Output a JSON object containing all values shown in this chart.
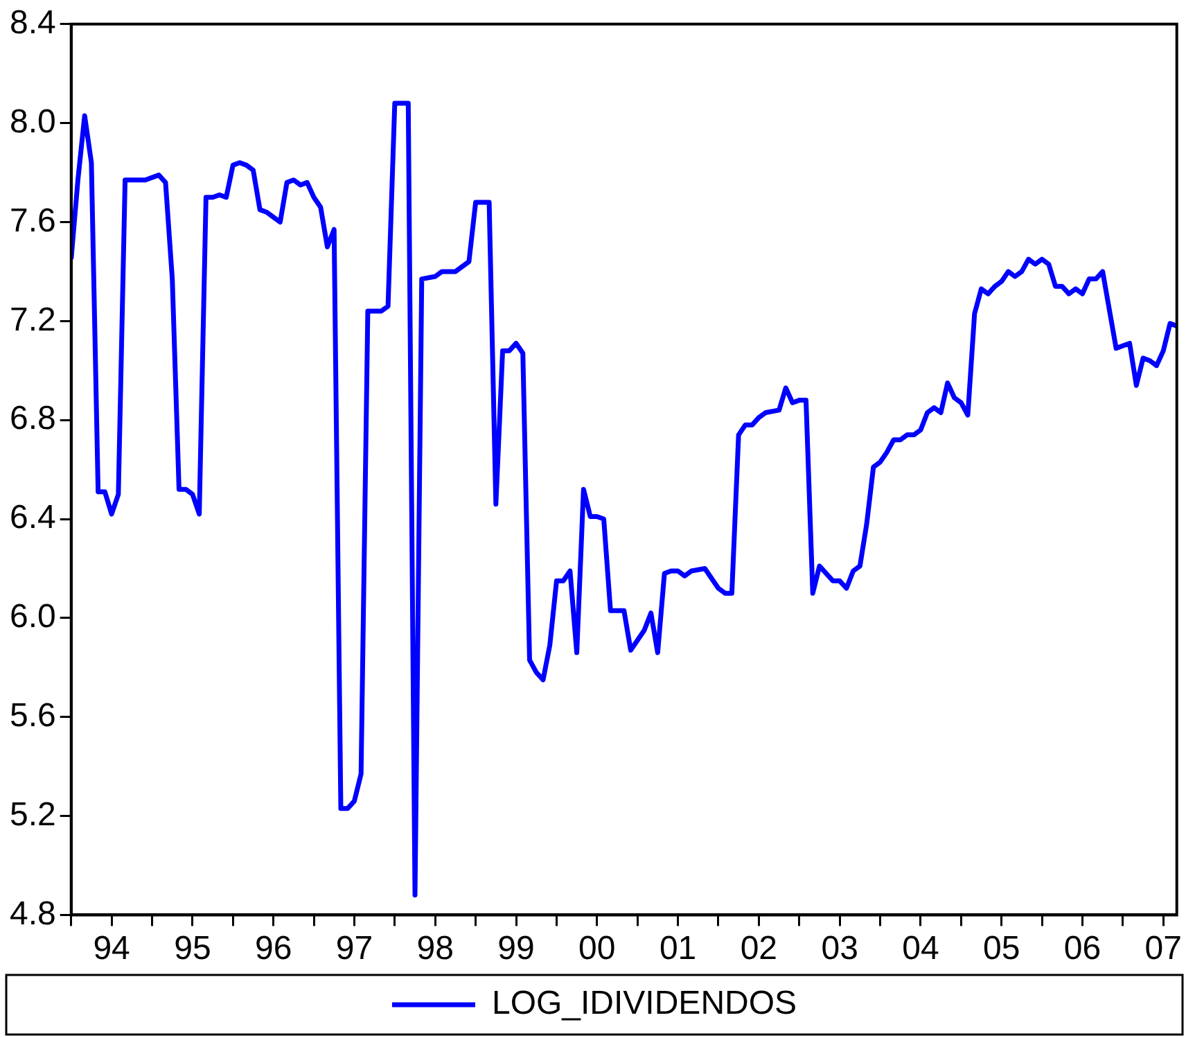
{
  "chart_data": {
    "type": "line",
    "x": [
      "1994-01",
      "1994-02",
      "1994-03",
      "1994-04",
      "1994-05",
      "1994-06",
      "1994-07",
      "1994-08",
      "1994-09",
      "1994-11",
      "1994-12",
      "1995-02",
      "1995-03",
      "1995-04",
      "1995-05",
      "1995-06",
      "1995-07",
      "1995-08",
      "1995-09",
      "1995-10",
      "1995-11",
      "1995-12",
      "1996-01",
      "1996-02",
      "1996-03",
      "1996-04",
      "1996-05",
      "1996-06",
      "1996-07",
      "1996-08",
      "1996-09",
      "1996-10",
      "1996-11",
      "1996-12",
      "1997-01",
      "1997-02",
      "1997-03",
      "1997-04",
      "1997-05",
      "1997-06",
      "1997-07",
      "1997-08",
      "1997-09",
      "1997-11",
      "1997-12",
      "1998-01",
      "1998-03",
      "1998-04",
      "1998-05",
      "1998-07",
      "1998-08",
      "1998-10",
      "1998-12",
      "1999-01",
      "1999-02",
      "1999-03",
      "1999-04",
      "1999-05",
      "1999-06",
      "1999-07",
      "1999-08",
      "1999-09",
      "1999-10",
      "1999-11",
      "1999-12",
      "2000-01",
      "2000-02",
      "2000-03",
      "2000-04",
      "2000-05",
      "2000-06",
      "2000-07",
      "2000-08",
      "2000-09",
      "2000-11",
      "2000-12",
      "2001-01",
      "2001-02",
      "2001-03",
      "2001-04",
      "2001-05",
      "2001-06",
      "2001-07",
      "2001-08",
      "2001-09",
      "2001-11",
      "2001-12",
      "2002-01",
      "2002-02",
      "2002-03",
      "2002-04",
      "2002-05",
      "2002-06",
      "2002-07",
      "2002-08",
      "2002-10",
      "2002-11",
      "2002-12",
      "2003-01",
      "2003-02",
      "2003-03",
      "2003-04",
      "2003-05",
      "2003-06",
      "2003-07",
      "2003-08",
      "2003-09",
      "2003-10",
      "2003-11",
      "2003-12",
      "2004-01",
      "2004-02",
      "2004-03",
      "2004-04",
      "2004-05",
      "2004-06",
      "2004-07",
      "2004-08",
      "2004-09",
      "2004-10",
      "2004-11",
      "2004-12",
      "2005-01",
      "2005-02",
      "2005-03",
      "2005-04",
      "2005-05",
      "2005-06",
      "2005-07",
      "2005-08",
      "2005-09",
      "2005-10",
      "2005-11",
      "2005-12",
      "2006-01",
      "2006-02",
      "2006-03",
      "2006-04",
      "2006-05",
      "2006-06",
      "2006-07",
      "2006-08",
      "2006-09",
      "2006-10",
      "2006-12",
      "2007-01",
      "2007-02",
      "2007-03",
      "2007-04",
      "2007-05",
      "2007-06",
      "2007-07",
      "2007-08",
      "2007-09"
    ],
    "series": [
      {
        "name": "LOG_IDIVIDENDOS",
        "color": "#0000ff",
        "values": [
          7.45,
          7.77,
          8.03,
          7.84,
          6.51,
          6.51,
          6.42,
          6.5,
          7.77,
          7.77,
          7.77,
          7.79,
          7.76,
          7.37,
          6.52,
          6.52,
          6.5,
          6.42,
          7.7,
          7.7,
          7.71,
          7.7,
          7.83,
          7.84,
          7.83,
          7.81,
          7.65,
          7.64,
          7.62,
          7.6,
          7.76,
          7.77,
          7.75,
          7.76,
          7.7,
          7.66,
          7.5,
          7.57,
          5.23,
          5.23,
          5.26,
          5.37,
          7.24,
          7.24,
          7.26,
          8.08,
          8.08,
          4.88,
          7.37,
          7.38,
          7.4,
          7.4,
          7.44,
          7.68,
          7.68,
          7.68,
          6.46,
          7.08,
          7.08,
          7.11,
          7.07,
          5.83,
          5.78,
          5.75,
          5.89,
          6.15,
          6.15,
          6.19,
          5.86,
          6.52,
          6.41,
          6.41,
          6.4,
          6.03,
          6.03,
          5.87,
          5.91,
          5.95,
          6.02,
          5.86,
          6.18,
          6.19,
          6.19,
          6.17,
          6.19,
          6.2,
          6.16,
          6.12,
          6.1,
          6.1,
          6.74,
          6.78,
          6.78,
          6.81,
          6.83,
          6.84,
          6.93,
          6.87,
          6.88,
          6.88,
          6.1,
          6.21,
          6.18,
          6.15,
          6.15,
          6.12,
          6.19,
          6.21,
          6.38,
          6.61,
          6.63,
          6.67,
          6.72,
          6.72,
          6.74,
          6.74,
          6.76,
          6.83,
          6.85,
          6.83,
          6.95,
          6.89,
          6.87,
          6.82,
          7.23,
          7.33,
          7.31,
          7.34,
          7.36,
          7.4,
          7.38,
          7.4,
          7.45,
          7.43,
          7.45,
          7.43,
          7.34,
          7.34,
          7.31,
          7.33,
          7.31,
          7.37,
          7.37,
          7.4,
          7.09,
          7.1,
          7.11,
          6.94,
          7.05,
          7.04,
          7.02,
          7.08,
          7.19,
          7.18
        ]
      }
    ],
    "xlim": [
      "1994-01",
      "2007-09"
    ],
    "xticks": [
      {
        "value": "1994",
        "label": null
      },
      {
        "value": "1994-07",
        "label": "94"
      },
      {
        "value": "1995",
        "label": null
      },
      {
        "value": "1995-07",
        "label": "95"
      },
      {
        "value": "1996",
        "label": null
      },
      {
        "value": "1996-07",
        "label": "96"
      },
      {
        "value": "1997",
        "label": null
      },
      {
        "value": "1997-07",
        "label": "97"
      },
      {
        "value": "1998",
        "label": null
      },
      {
        "value": "1998-07",
        "label": "98"
      },
      {
        "value": "1999",
        "label": null
      },
      {
        "value": "1999-07",
        "label": "99"
      },
      {
        "value": "2000",
        "label": null
      },
      {
        "value": "2000-07",
        "label": "00"
      },
      {
        "value": "2001",
        "label": null
      },
      {
        "value": "2001-07",
        "label": "01"
      },
      {
        "value": "2002",
        "label": null
      },
      {
        "value": "2002-07",
        "label": "02"
      },
      {
        "value": "2003",
        "label": null
      },
      {
        "value": "2003-07",
        "label": "03"
      },
      {
        "value": "2004",
        "label": null
      },
      {
        "value": "2004-07",
        "label": "04"
      },
      {
        "value": "2005",
        "label": null
      },
      {
        "value": "2005-07",
        "label": "05"
      },
      {
        "value": "2006",
        "label": null
      },
      {
        "value": "2006-07",
        "label": "06"
      },
      {
        "value": "2007",
        "label": null
      },
      {
        "value": "2007-07",
        "label": "07"
      }
    ],
    "ylim": [
      4.8,
      8.4
    ],
    "yticks": [
      {
        "value": 4.8,
        "label": "4.8"
      },
      {
        "value": 5.2,
        "label": "5.2"
      },
      {
        "value": 5.6,
        "label": "5.6"
      },
      {
        "value": 6.0,
        "label": "6.0"
      },
      {
        "value": 6.4,
        "label": "6.4"
      },
      {
        "value": 6.8,
        "label": "6.8"
      },
      {
        "value": 7.2,
        "label": "7.2"
      },
      {
        "value": 7.6,
        "label": "7.6"
      },
      {
        "value": 8.0,
        "label": "8.0"
      },
      {
        "value": 8.4,
        "label": "8.4"
      }
    ],
    "grid": false,
    "legend": "bottom",
    "marker": "none",
    "line_style": "solid"
  }
}
